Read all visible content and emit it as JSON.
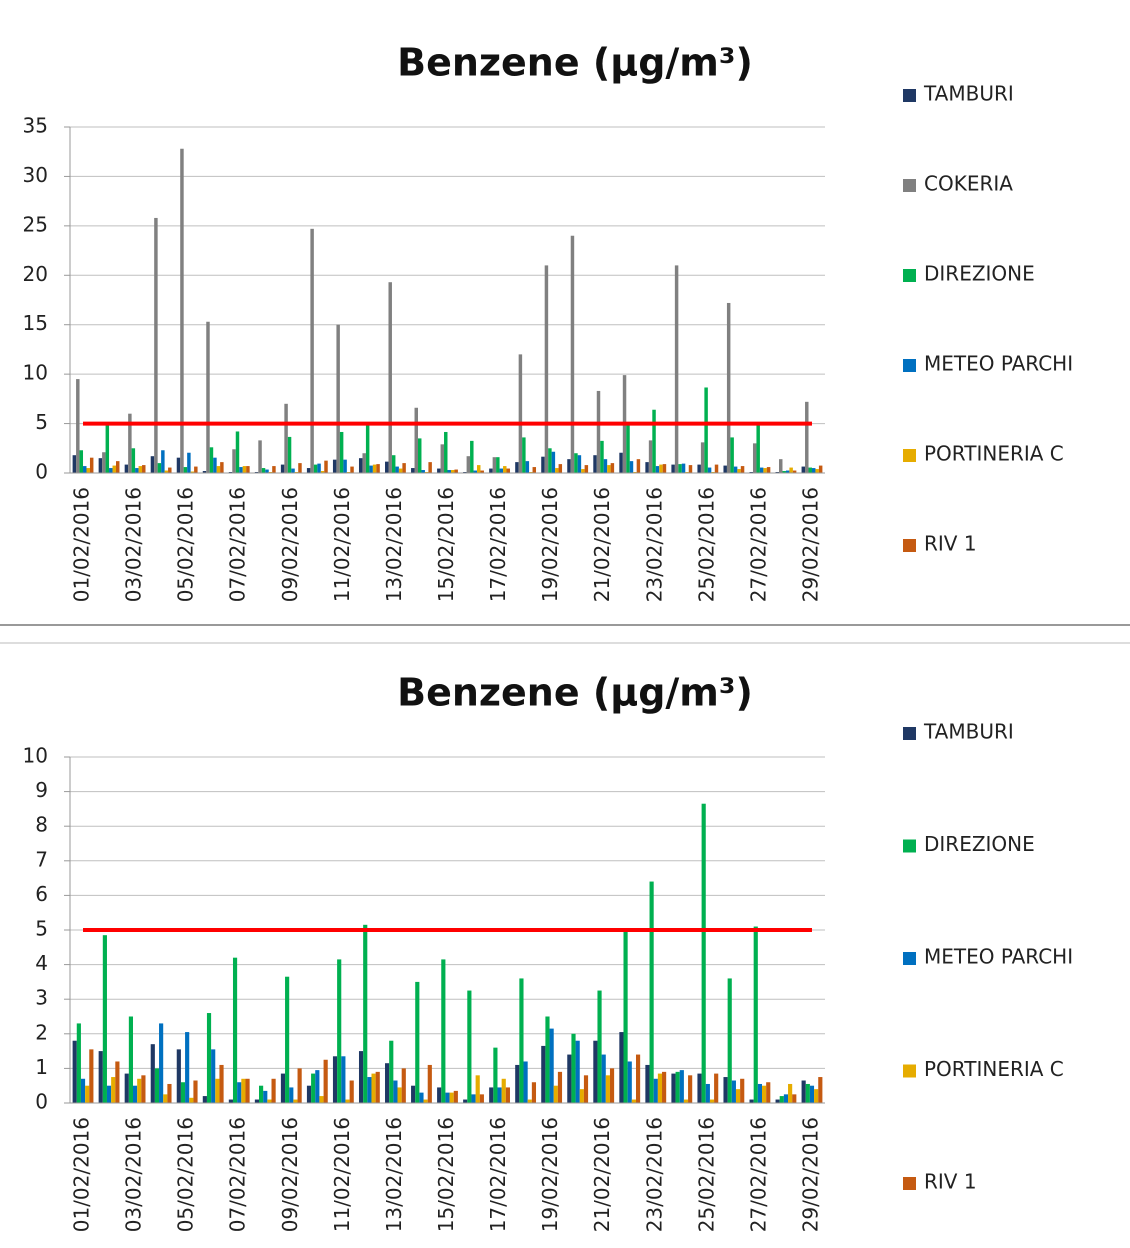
{
  "chart_data": [
    {
      "type": "bar",
      "title": "Benzene (µg/m³)",
      "categories": [
        "01/02/2016",
        null,
        "03/02/2016",
        null,
        "05/02/2016",
        null,
        "07/02/2016",
        null,
        "09/02/2016",
        null,
        "11/02/2016",
        null,
        "13/02/2016",
        null,
        "15/02/2016",
        null,
        "17/02/2016",
        null,
        "19/02/2016",
        null,
        "21/02/2016",
        null,
        "23/02/2016",
        null,
        "25/02/2016",
        null,
        "27/02/2016",
        null,
        "29/02/2016"
      ],
      "series": [
        {
          "name": "TAMBURI",
          "color": "#1f3864",
          "values": [
            1.8,
            1.5,
            0.85,
            1.7,
            1.55,
            0.2,
            0.1,
            0.1,
            0.85,
            0.5,
            1.35,
            1.5,
            1.15,
            0.5,
            0.45,
            0.1,
            0.45,
            1.1,
            1.65,
            1.4,
            1.8,
            2.05,
            1.1,
            0.85,
            0.85,
            0.75,
            0.1,
            0.1,
            0.65
          ]
        },
        {
          "name": "COKERIA",
          "color": "#808080",
          "values": [
            9.5,
            2.1,
            6.0,
            25.8,
            32.8,
            15.3,
            2.4,
            3.3,
            7.0,
            24.7,
            15.0,
            2.0,
            19.3,
            6.6,
            2.9,
            1.7,
            1.6,
            12.0,
            21.0,
            24.0,
            8.3,
            9.9,
            3.3,
            21.0,
            3.1,
            17.2,
            3.0,
            1.4,
            7.2
          ]
        },
        {
          "name": "DIREZIONE",
          "color": "#00b050",
          "values": [
            2.3,
            4.85,
            2.5,
            1.0,
            0.6,
            2.6,
            4.2,
            0.5,
            3.65,
            0.85,
            4.15,
            5.15,
            1.8,
            3.5,
            4.15,
            3.25,
            1.6,
            3.6,
            2.5,
            2.0,
            3.25,
            4.95,
            6.4,
            0.9,
            8.65,
            3.6,
            5.1,
            0.2,
            0.55
          ]
        },
        {
          "name": "METEO PARCHI",
          "color": "#0070c0",
          "values": [
            0.7,
            0.5,
            0.5,
            2.3,
            2.05,
            1.55,
            0.6,
            0.35,
            0.45,
            0.95,
            1.35,
            0.75,
            0.65,
            0.3,
            0.3,
            0.25,
            0.45,
            1.2,
            2.15,
            1.8,
            1.4,
            1.2,
            0.7,
            0.95,
            0.55,
            0.65,
            0.55,
            0.25,
            0.5
          ]
        },
        {
          "name": "PORTINERIA C",
          "color": "#e6ac00",
          "values": [
            0.5,
            0.75,
            0.7,
            0.25,
            0.15,
            0.7,
            0.7,
            0.1,
            0.1,
            0.2,
            0.1,
            0.85,
            0.45,
            0.1,
            0.3,
            0.8,
            0.7,
            0.1,
            0.5,
            0.4,
            0.8,
            0.1,
            0.85,
            0.1,
            0.1,
            0.4,
            0.5,
            0.55,
            0.4
          ]
        },
        {
          "name": "RIV 1",
          "color": "#c55a11",
          "values": [
            1.55,
            1.2,
            0.8,
            0.55,
            0.65,
            1.1,
            0.7,
            0.7,
            1.0,
            1.25,
            0.65,
            0.9,
            1.0,
            1.1,
            0.35,
            0.25,
            0.45,
            0.6,
            0.9,
            0.8,
            1.0,
            1.4,
            0.9,
            0.8,
            0.85,
            0.7,
            0.6,
            0.25,
            0.75
          ]
        }
      ],
      "ylim": [
        0,
        35
      ],
      "yticks": [
        0,
        5,
        10,
        15,
        20,
        25,
        30,
        35
      ],
      "grid": true,
      "threshold": 5,
      "threshold_color": "#ff0000",
      "legend": "right"
    },
    {
      "type": "bar",
      "title": "Benzene (µg/m³)",
      "categories": [
        "01/02/2016",
        null,
        "03/02/2016",
        null,
        "05/02/2016",
        null,
        "07/02/2016",
        null,
        "09/02/2016",
        null,
        "11/02/2016",
        null,
        "13/02/2016",
        null,
        "15/02/2016",
        null,
        "17/02/2016",
        null,
        "19/02/2016",
        null,
        "21/02/2016",
        null,
        "23/02/2016",
        null,
        "25/02/2016",
        null,
        "27/02/2016",
        null,
        "29/02/2016"
      ],
      "series": [
        {
          "name": "TAMBURI",
          "color": "#1f3864",
          "values": [
            1.8,
            1.5,
            0.85,
            1.7,
            1.55,
            0.2,
            0.1,
            0.1,
            0.85,
            0.5,
            1.35,
            1.5,
            1.15,
            0.5,
            0.45,
            0.1,
            0.45,
            1.1,
            1.65,
            1.4,
            1.8,
            2.05,
            1.1,
            0.85,
            0.85,
            0.75,
            0.1,
            0.1,
            0.65
          ]
        },
        {
          "name": "DIREZIONE",
          "color": "#00b050",
          "values": [
            2.3,
            4.85,
            2.5,
            1.0,
            0.6,
            2.6,
            4.2,
            0.5,
            3.65,
            0.85,
            4.15,
            5.15,
            1.8,
            3.5,
            4.15,
            3.25,
            1.6,
            3.6,
            2.5,
            2.0,
            3.25,
            4.95,
            6.4,
            0.9,
            8.65,
            3.6,
            5.1,
            0.2,
            0.55
          ]
        },
        {
          "name": "METEO PARCHI",
          "color": "#0070c0",
          "values": [
            0.7,
            0.5,
            0.5,
            2.3,
            2.05,
            1.55,
            0.6,
            0.35,
            0.45,
            0.95,
            1.35,
            0.75,
            0.65,
            0.3,
            0.3,
            0.25,
            0.45,
            1.2,
            2.15,
            1.8,
            1.4,
            1.2,
            0.7,
            0.95,
            0.55,
            0.65,
            0.55,
            0.25,
            0.5
          ]
        },
        {
          "name": "PORTINERIA C",
          "color": "#e6ac00",
          "values": [
            0.5,
            0.75,
            0.7,
            0.25,
            0.15,
            0.7,
            0.7,
            0.1,
            0.1,
            0.2,
            0.1,
            0.85,
            0.45,
            0.1,
            0.3,
            0.8,
            0.7,
            0.1,
            0.5,
            0.4,
            0.8,
            0.1,
            0.85,
            0.1,
            0.1,
            0.4,
            0.5,
            0.55,
            0.4
          ]
        },
        {
          "name": "RIV 1",
          "color": "#c55a11",
          "values": [
            1.55,
            1.2,
            0.8,
            0.55,
            0.65,
            1.1,
            0.7,
            0.7,
            1.0,
            1.25,
            0.65,
            0.9,
            1.0,
            1.1,
            0.35,
            0.25,
            0.45,
            0.6,
            0.9,
            0.8,
            1.0,
            1.4,
            0.9,
            0.8,
            0.85,
            0.7,
            0.6,
            0.25,
            0.75
          ]
        }
      ],
      "ylim": [
        0,
        10
      ],
      "yticks": [
        0,
        1,
        2,
        3,
        4,
        5,
        6,
        7,
        8,
        9,
        10
      ],
      "grid": true,
      "threshold": 5,
      "threshold_color": "#ff0000",
      "legend": "right"
    }
  ]
}
